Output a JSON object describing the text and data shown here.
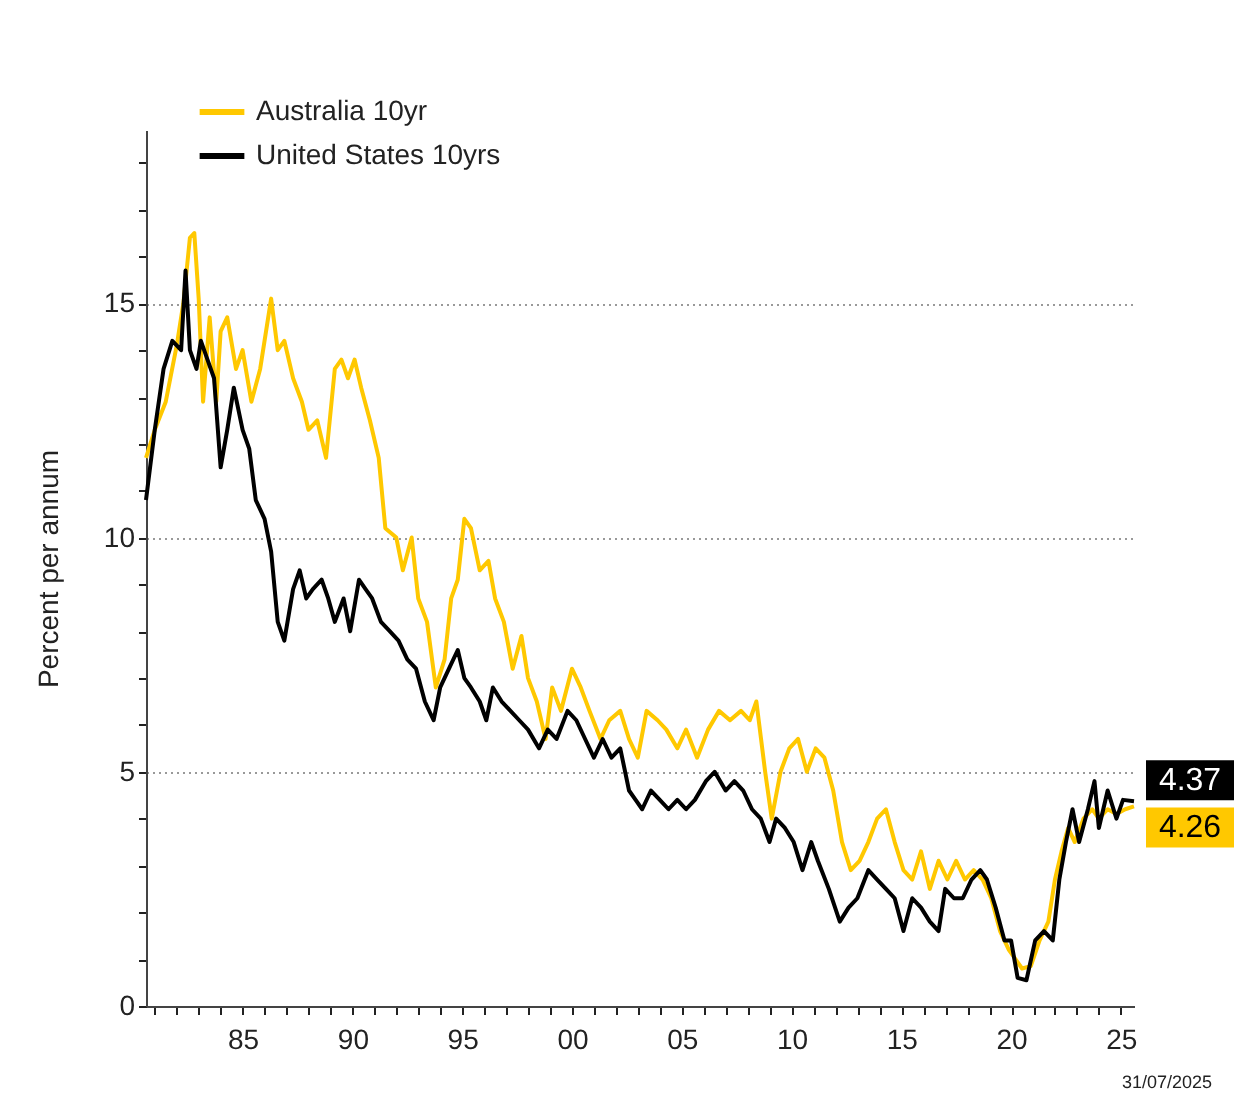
{
  "chart_data": {
    "type": "line",
    "ylabel": "Percent per annum",
    "annotations": [
      "31/07/2025"
    ],
    "xlim": [
      1980.6,
      2025.6
    ],
    "xticks": [
      {
        "value": 1981,
        "label": null
      },
      {
        "value": 1982,
        "label": null
      },
      {
        "value": 1983,
        "label": null
      },
      {
        "value": 1984,
        "label": null
      },
      {
        "value": 1985,
        "label": "85"
      },
      {
        "value": 1986,
        "label": null
      },
      {
        "value": 1987,
        "label": null
      },
      {
        "value": 1988,
        "label": null
      },
      {
        "value": 1989,
        "label": null
      },
      {
        "value": 1990,
        "label": "90"
      },
      {
        "value": 1991,
        "label": null
      },
      {
        "value": 1992,
        "label": null
      },
      {
        "value": 1993,
        "label": null
      },
      {
        "value": 1994,
        "label": null
      },
      {
        "value": 1995,
        "label": "95"
      },
      {
        "value": 1996,
        "label": null
      },
      {
        "value": 1997,
        "label": null
      },
      {
        "value": 1998,
        "label": null
      },
      {
        "value": 1999,
        "label": null
      },
      {
        "value": 2000,
        "label": "00"
      },
      {
        "value": 2001,
        "label": null
      },
      {
        "value": 2002,
        "label": null
      },
      {
        "value": 2003,
        "label": null
      },
      {
        "value": 2004,
        "label": null
      },
      {
        "value": 2005,
        "label": "05"
      },
      {
        "value": 2006,
        "label": null
      },
      {
        "value": 2007,
        "label": null
      },
      {
        "value": 2008,
        "label": null
      },
      {
        "value": 2009,
        "label": null
      },
      {
        "value": 2010,
        "label": "10"
      },
      {
        "value": 2011,
        "label": null
      },
      {
        "value": 2012,
        "label": null
      },
      {
        "value": 2013,
        "label": null
      },
      {
        "value": 2014,
        "label": null
      },
      {
        "value": 2015,
        "label": "15"
      },
      {
        "value": 2016,
        "label": null
      },
      {
        "value": 2017,
        "label": null
      },
      {
        "value": 2018,
        "label": null
      },
      {
        "value": 2019,
        "label": null
      },
      {
        "value": 2020,
        "label": "20"
      },
      {
        "value": 2021,
        "label": null
      },
      {
        "value": 2022,
        "label": null
      },
      {
        "value": 2023,
        "label": null
      },
      {
        "value": 2024,
        "label": null
      },
      {
        "value": 2025,
        "label": "25"
      }
    ],
    "ylim": [
      0,
      18.7
    ],
    "yticks": [
      0,
      {
        "value": 1,
        "label": null
      },
      {
        "value": 2,
        "label": null
      },
      {
        "value": 3,
        "label": null
      },
      {
        "value": 4,
        "label": null
      },
      5,
      {
        "value": 6,
        "label": null
      },
      {
        "value": 7,
        "label": null
      },
      {
        "value": 8,
        "label": null
      },
      {
        "value": 9,
        "label": null
      },
      10,
      {
        "value": 11,
        "label": null
      },
      {
        "value": 12,
        "label": null
      },
      {
        "value": 13,
        "label": null
      },
      {
        "value": 14,
        "label": null
      },
      15,
      {
        "value": 16,
        "label": null
      },
      {
        "value": 17,
        "label": null
      },
      {
        "value": 18,
        "label": null
      }
    ],
    "grid": "y",
    "legend": "top left",
    "series": [
      {
        "name": "Australia 10yr",
        "color": "#ffc800",
        "x": [
          1980.6,
          1981.0,
          1981.5,
          1982.0,
          1982.3,
          1982.6,
          1982.8,
          1983.0,
          1983.2,
          1983.5,
          1983.8,
          1984.0,
          1984.3,
          1984.7,
          1985.0,
          1985.4,
          1985.8,
          1986.3,
          1986.6,
          1986.9,
          1987.3,
          1987.7,
          1988.0,
          1988.4,
          1988.8,
          1989.2,
          1989.5,
          1989.8,
          1990.1,
          1990.4,
          1990.8,
          1991.2,
          1991.5,
          1992.0,
          1992.3,
          1992.7,
          1993.0,
          1993.4,
          1993.8,
          1994.2,
          1994.5,
          1994.8,
          1995.1,
          1995.4,
          1995.8,
          1996.2,
          1996.5,
          1996.9,
          1997.3,
          1997.7,
          1998.0,
          1998.4,
          1998.8,
          1999.1,
          1999.5,
          2000.0,
          2000.4,
          2000.8,
          2001.3,
          2001.7,
          2002.2,
          2002.6,
          2003.0,
          2003.4,
          2003.9,
          2004.3,
          2004.8,
          2005.2,
          2005.7,
          2006.2,
          2006.7,
          2007.2,
          2007.7,
          2008.1,
          2008.4,
          2008.8,
          2009.1,
          2009.5,
          2009.9,
          2010.3,
          2010.7,
          2011.1,
          2011.5,
          2011.9,
          2012.3,
          2012.7,
          2013.1,
          2013.5,
          2013.9,
          2014.3,
          2014.7,
          2015.1,
          2015.5,
          2015.9,
          2016.3,
          2016.7,
          2017.1,
          2017.5,
          2017.9,
          2018.3,
          2018.7,
          2019.1,
          2019.5,
          2019.9,
          2020.2,
          2020.5,
          2020.9,
          2021.3,
          2021.7,
          2022.0,
          2022.3,
          2022.6,
          2022.9,
          2023.3,
          2023.7,
          2024.0,
          2024.4,
          2024.8,
          2025.2,
          2025.6
        ],
        "values": [
          11.7,
          12.3,
          12.9,
          14.1,
          15.0,
          16.4,
          16.5,
          15.1,
          12.9,
          14.7,
          12.9,
          14.4,
          14.7,
          13.6,
          14.0,
          12.9,
          13.6,
          15.1,
          14.0,
          14.2,
          13.4,
          12.9,
          12.3,
          12.5,
          11.7,
          13.6,
          13.8,
          13.4,
          13.8,
          13.2,
          12.5,
          11.7,
          10.2,
          10.0,
          9.3,
          10.0,
          8.7,
          8.2,
          6.8,
          7.4,
          8.7,
          9.1,
          10.4,
          10.2,
          9.3,
          9.5,
          8.7,
          8.2,
          7.2,
          7.9,
          7.0,
          6.5,
          5.7,
          6.8,
          6.3,
          7.2,
          6.8,
          6.3,
          5.7,
          6.1,
          6.3,
          5.7,
          5.3,
          6.3,
          6.1,
          5.9,
          5.5,
          5.9,
          5.3,
          5.9,
          6.3,
          6.1,
          6.3,
          6.1,
          6.5,
          5.0,
          4.0,
          5.0,
          5.5,
          5.7,
          5.0,
          5.5,
          5.3,
          4.6,
          3.5,
          2.9,
          3.1,
          3.5,
          4.0,
          4.2,
          3.5,
          2.9,
          2.7,
          3.3,
          2.5,
          3.1,
          2.7,
          3.1,
          2.7,
          2.9,
          2.7,
          2.3,
          1.6,
          1.2,
          1.0,
          0.8,
          0.85,
          1.4,
          1.8,
          2.7,
          3.3,
          3.8,
          3.5,
          4.0,
          4.2,
          4.0,
          4.2,
          4.1,
          4.2,
          4.26
        ],
        "value_labels": [
          null,
          null,
          null,
          null,
          null,
          null,
          null,
          null,
          null,
          null,
          null,
          null,
          null,
          null,
          null,
          null,
          null,
          null,
          null,
          null,
          null,
          null,
          null,
          null,
          null,
          null,
          null,
          null,
          null,
          null,
          null,
          null,
          null,
          null,
          null,
          null,
          null,
          null,
          null,
          null,
          null,
          null,
          null,
          null,
          null,
          null,
          null,
          null,
          null,
          null,
          null,
          null,
          null,
          null,
          null,
          null,
          null,
          null,
          null,
          null,
          null,
          null,
          null,
          null,
          null,
          null,
          null,
          null,
          null,
          null,
          null,
          null,
          null,
          null,
          null,
          null,
          null,
          null,
          null,
          null,
          null,
          null,
          null,
          null,
          null,
          null,
          null,
          null,
          null,
          null,
          null,
          null,
          null,
          null,
          null,
          null,
          null,
          null,
          null,
          null,
          null,
          null,
          null,
          null,
          null,
          null,
          null,
          null,
          null,
          null,
          null,
          null,
          null,
          null,
          null,
          null,
          null,
          null,
          null,
          "4.26"
        ]
      },
      {
        "name": "United States 10yrs",
        "color": "#000000",
        "x": [
          1980.6,
          1981.0,
          1981.4,
          1981.8,
          1982.2,
          1982.4,
          1982.6,
          1982.9,
          1983.1,
          1983.4,
          1983.7,
          1984.0,
          1984.3,
          1984.6,
          1985.0,
          1985.3,
          1985.6,
          1986.0,
          1986.3,
          1986.6,
          1986.9,
          1987.3,
          1987.6,
          1987.9,
          1988.2,
          1988.6,
          1988.9,
          1989.2,
          1989.6,
          1989.9,
          1990.3,
          1990.6,
          1990.9,
          1991.3,
          1991.7,
          1992.1,
          1992.5,
          1992.9,
          1993.3,
          1993.7,
          1994.0,
          1994.4,
          1994.8,
          1995.1,
          1995.4,
          1995.8,
          1996.1,
          1996.4,
          1996.8,
          1997.2,
          1997.6,
          1998.0,
          1998.5,
          1998.9,
          1999.3,
          1999.8,
          2000.2,
          2000.6,
          2001.0,
          2001.4,
          2001.8,
          2002.2,
          2002.6,
          2002.9,
          2003.2,
          2003.6,
          2004.0,
          2004.4,
          2004.8,
          2005.2,
          2005.6,
          2006.1,
          2006.5,
          2007.0,
          2007.4,
          2007.8,
          2008.2,
          2008.6,
          2009.0,
          2009.3,
          2009.7,
          2010.1,
          2010.5,
          2010.9,
          2011.2,
          2011.7,
          2012.2,
          2012.6,
          2013.0,
          2013.5,
          2013.9,
          2014.3,
          2014.7,
          2015.1,
          2015.5,
          2015.9,
          2016.3,
          2016.7,
          2017.0,
          2017.4,
          2017.8,
          2018.2,
          2018.6,
          2018.9,
          2019.3,
          2019.7,
          2020.0,
          2020.3,
          2020.7,
          2021.1,
          2021.5,
          2021.9,
          2022.2,
          2022.5,
          2022.8,
          2023.1,
          2023.5,
          2023.8,
          2024.0,
          2024.4,
          2024.8,
          2025.1,
          2025.6
        ],
        "values": [
          10.8,
          12.3,
          13.6,
          14.2,
          14.0,
          15.7,
          14.0,
          13.6,
          14.2,
          13.8,
          13.4,
          11.5,
          12.3,
          13.2,
          12.3,
          11.9,
          10.8,
          10.4,
          9.7,
          8.2,
          7.8,
          8.9,
          9.3,
          8.7,
          8.9,
          9.1,
          8.7,
          8.2,
          8.7,
          8.0,
          9.1,
          8.9,
          8.7,
          8.2,
          8.0,
          7.8,
          7.4,
          7.2,
          6.5,
          6.1,
          6.8,
          7.2,
          7.6,
          7.0,
          6.8,
          6.5,
          6.1,
          6.8,
          6.5,
          6.3,
          6.1,
          5.9,
          5.5,
          5.9,
          5.7,
          6.3,
          6.1,
          5.7,
          5.3,
          5.7,
          5.3,
          5.5,
          4.6,
          4.4,
          4.2,
          4.6,
          4.4,
          4.2,
          4.4,
          4.2,
          4.4,
          4.8,
          5.0,
          4.6,
          4.8,
          4.6,
          4.2,
          4.0,
          3.5,
          4.0,
          3.8,
          3.5,
          2.9,
          3.5,
          3.1,
          2.5,
          1.8,
          2.1,
          2.3,
          2.9,
          2.7,
          2.5,
          2.3,
          1.6,
          2.3,
          2.1,
          1.8,
          1.6,
          2.5,
          2.3,
          2.3,
          2.7,
          2.9,
          2.7,
          2.1,
          1.4,
          1.4,
          0.6,
          0.55,
          1.4,
          1.6,
          1.4,
          2.7,
          3.5,
          4.2,
          3.5,
          4.2,
          4.8,
          3.8,
          4.6,
          4.0,
          4.4,
          4.37
        ],
        "value_labels": [
          null,
          null,
          null,
          null,
          null,
          null,
          null,
          null,
          null,
          null,
          null,
          null,
          null,
          null,
          null,
          null,
          null,
          null,
          null,
          null,
          null,
          null,
          null,
          null,
          null,
          null,
          null,
          null,
          null,
          null,
          null,
          null,
          null,
          null,
          null,
          null,
          null,
          null,
          null,
          null,
          null,
          null,
          null,
          null,
          null,
          null,
          null,
          null,
          null,
          null,
          null,
          null,
          null,
          null,
          null,
          null,
          null,
          null,
          null,
          null,
          null,
          null,
          null,
          null,
          null,
          null,
          null,
          null,
          null,
          null,
          null,
          null,
          null,
          null,
          null,
          null,
          null,
          null,
          null,
          null,
          null,
          null,
          null,
          null,
          null,
          null,
          null,
          null,
          null,
          null,
          null,
          null,
          null,
          null,
          null,
          null,
          null,
          null,
          null,
          null,
          null,
          null,
          null,
          null,
          null,
          null,
          null,
          null,
          null,
          null,
          null,
          null,
          null,
          null,
          null,
          null,
          null,
          null,
          null,
          null,
          null,
          null,
          "4.37"
        ]
      }
    ]
  }
}
